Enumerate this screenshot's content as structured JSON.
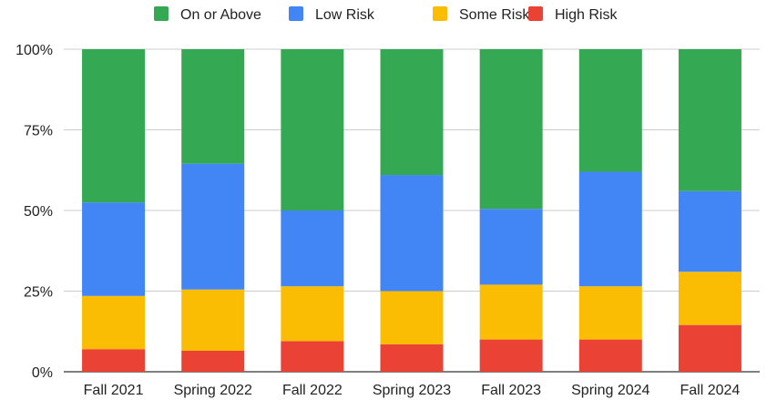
{
  "chart_data": {
    "type": "bar",
    "stacked": true,
    "categories": [
      "Fall 2021",
      "Spring 2022",
      "Fall 2022",
      "Spring 2023",
      "Fall 2023",
      "Spring 2024",
      "Fall 2024"
    ],
    "series": [
      {
        "name": "High Risk",
        "color": "#ea4335",
        "values": [
          7,
          6.5,
          9.5,
          8.5,
          10,
          10,
          14.5
        ]
      },
      {
        "name": "Some Risk",
        "color": "#fbbc04",
        "values": [
          16.5,
          19,
          17,
          16.5,
          17,
          16.5,
          16.5
        ]
      },
      {
        "name": "Low Risk",
        "color": "#4285f4",
        "values": [
          29,
          39,
          23.5,
          36,
          23.5,
          35.5,
          25
        ]
      },
      {
        "name": "On or Above",
        "color": "#34a853",
        "values": [
          47.5,
          35.5,
          50,
          39,
          49.5,
          38,
          44
        ]
      }
    ],
    "legend_order": [
      "On or Above",
      "Low Risk",
      "Some Risk",
      "High Risk"
    ],
    "legend_position": "top",
    "ylim": [
      0,
      100
    ],
    "y_ticks": [
      "0%",
      "25%",
      "50%",
      "75%",
      "100%"
    ],
    "y_tick_values": [
      0,
      25,
      50,
      75,
      100
    ],
    "grid": true
  }
}
